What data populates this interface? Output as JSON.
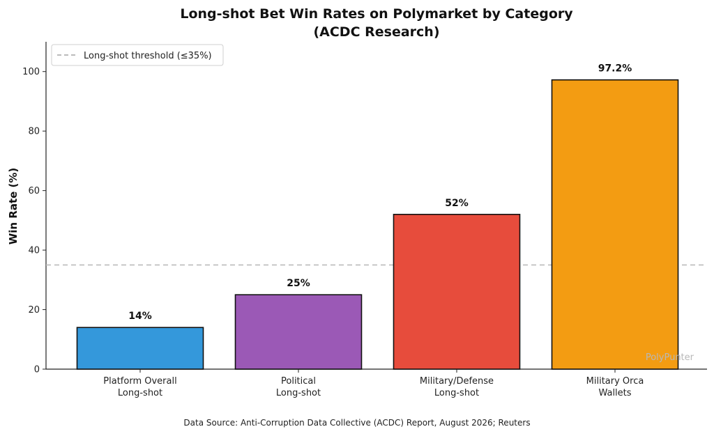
{
  "chart_data": {
    "type": "bar",
    "title_line1": "Long-shot Bet Win Rates on Polymarket by Category",
    "title_line2": "(ACDC Research)",
    "ylabel": "Win Rate (%)",
    "xlabel": "",
    "categories": [
      [
        "Platform Overall",
        "Long-shot"
      ],
      [
        "Political",
        "Long-shot"
      ],
      [
        "Military/Defense",
        "Long-shot"
      ],
      [
        "Military Orca",
        "Wallets"
      ]
    ],
    "values": [
      14,
      25,
      52,
      97.2
    ],
    "data_labels": [
      "14%",
      "25%",
      "52%",
      "97.2%"
    ],
    "colors": [
      "#3498db",
      "#9b59b6",
      "#e74c3c",
      "#f39c12"
    ],
    "ylim": [
      0,
      110
    ],
    "yticks": [
      0,
      20,
      40,
      60,
      80,
      100
    ],
    "threshold": {
      "value": 35,
      "label": "Long-shot threshold (≤35%)",
      "color": "#bbbbbb",
      "style": "dashed"
    },
    "legend_position": "top-left",
    "grid": false
  },
  "source_note": "Data Source: Anti-Corruption Data Collective (ACDC) Report, August 2026; Reuters",
  "watermark": "PolyPunter"
}
